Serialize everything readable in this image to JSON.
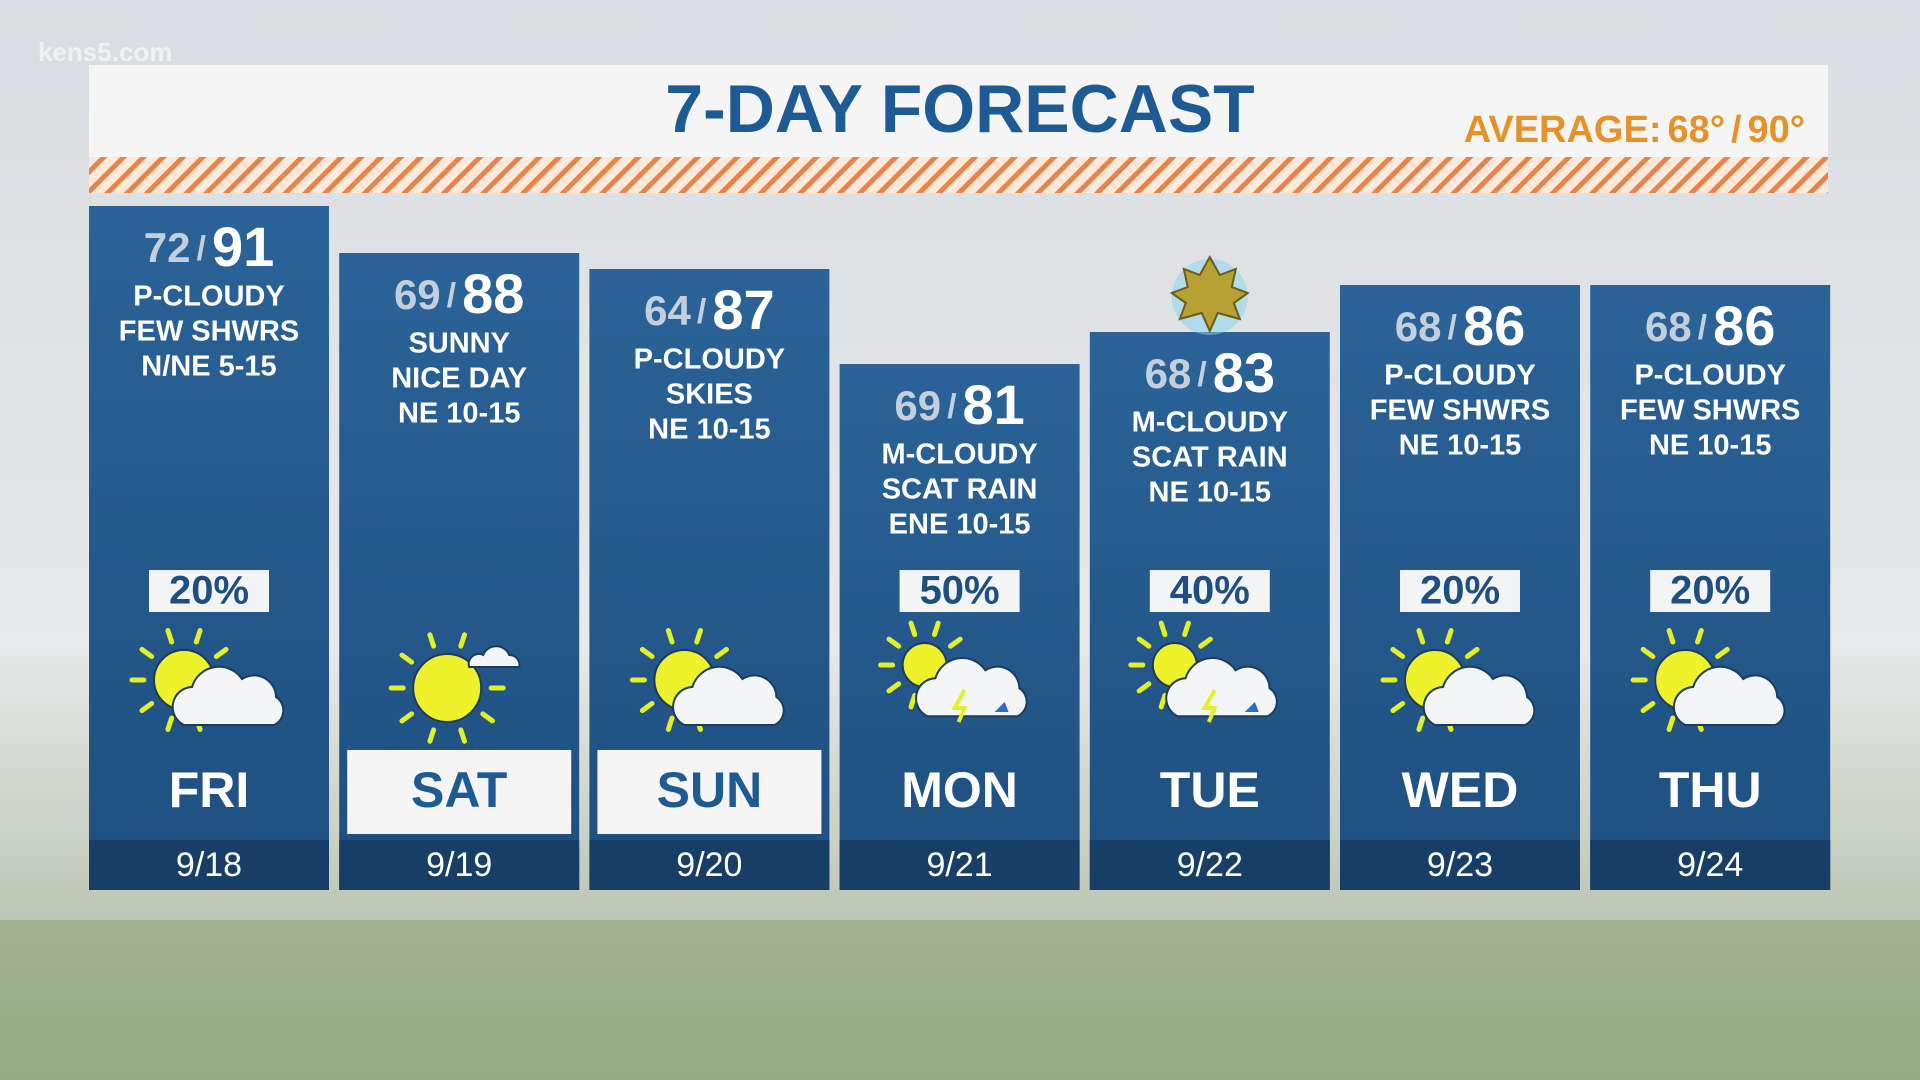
{
  "watermark": "kens5.com",
  "header": {
    "title": "7-DAY FORECAST",
    "average": {
      "label": "AVERAGE:",
      "low": "68°",
      "separator": "/",
      "high": "90°"
    }
  },
  "days": [
    {
      "low": "72",
      "separator": "/",
      "high": "91",
      "conditions": [
        "P-CLOUDY",
        "FEW SHWRS",
        "N/NE 5-15"
      ],
      "rain_chance": "20%",
      "day": "FRI",
      "date": "9/18"
    },
    {
      "low": "69",
      "separator": "/",
      "high": "88",
      "conditions": [
        "SUNNY",
        "NICE DAY",
        "NE 10-15"
      ],
      "day": "SAT",
      "date": "9/19"
    },
    {
      "low": "64",
      "separator": "/",
      "high": "87",
      "conditions": [
        "P-CLOUDY",
        "SKIES",
        "NE 10-15"
      ],
      "day": "SUN",
      "date": "9/20"
    },
    {
      "low": "69",
      "separator": "/",
      "high": "81",
      "conditions": [
        "M-CLOUDY",
        "SCAT RAIN",
        "ENE 10-15"
      ],
      "rain_chance": "50%",
      "day": "MON",
      "date": "9/21"
    },
    {
      "low": "68",
      "separator": "/",
      "high": "83",
      "conditions": [
        "M-CLOUDY",
        "SCAT RAIN",
        "NE 10-15"
      ],
      "rain_chance": "40%",
      "day": "TUE",
      "date": "9/22"
    },
    {
      "low": "68",
      "separator": "/",
      "high": "86",
      "conditions": [
        "P-CLOUDY",
        "FEW SHWRS",
        "NE 10-15"
      ],
      "rain_chance": "20%",
      "day": "WED",
      "date": "9/23"
    },
    {
      "low": "68",
      "separator": "/",
      "high": "86",
      "conditions": [
        "P-CLOUDY",
        "FEW SHWRS",
        "NE 10-15"
      ],
      "rain_chance": "20%",
      "day": "THU",
      "date": "9/24"
    }
  ]
}
